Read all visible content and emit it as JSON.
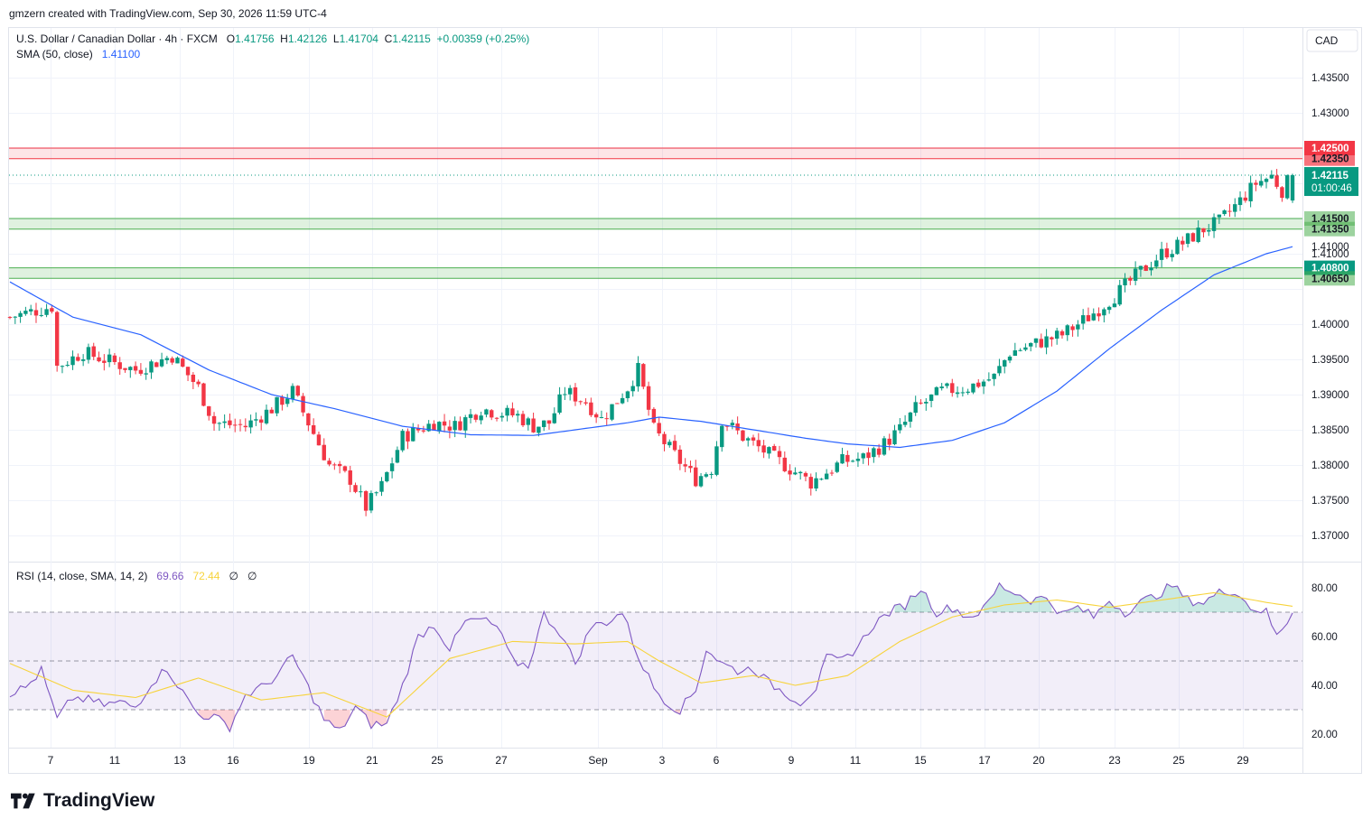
{
  "header": {
    "attribution": "gmzern created with TradingView.com, Sep 30, 2026 11:59 UTC-4"
  },
  "legend": {
    "symbol": "U.S. Dollar / Canadian Dollar · 4h · FXCM",
    "o_label": "O",
    "o": "1.41756",
    "h_label": "H",
    "h": "1.42126",
    "l_label": "L",
    "l": "1.41704",
    "c_label": "C",
    "c": "1.42115",
    "change": "+0.00359 (+0.25%)",
    "sma_label": "SMA (50, close)",
    "sma_value": "1.41100"
  },
  "rsi_legend": {
    "label": "RSI (14, close, SMA, 14, 2)",
    "rsi_value": "69.66",
    "rsi_sma_value": "72.44",
    "extra1": "∅",
    "extra2": "∅"
  },
  "axis": {
    "currency": "CAD",
    "countdown": "01:00:46"
  },
  "brand": {
    "name": "TradingView"
  },
  "colors": {
    "up": "#089981",
    "down": "#f23645",
    "sma": "#2962ff",
    "rsi": "#7e57c2",
    "rsi_sma": "#f7d33b",
    "resistance_zone": "#f23645",
    "support_zone": "#4caf50"
  },
  "chart_data": [
    {
      "type": "candlestick",
      "title": "U.S. Dollar / Canadian Dollar · 4h · FXCM",
      "ylim": [
        1.3665,
        1.4385
      ],
      "yticks": [
        "1.43500",
        "1.43000",
        "1.41000",
        "1.40000",
        "1.39500",
        "1.39000",
        "1.38500",
        "1.38000",
        "1.37500",
        "1.37000"
      ],
      "xticks": [
        "7",
        "11",
        "13",
        "16",
        "19",
        "21",
        "25",
        "27",
        "Sep",
        "3",
        "6",
        "9",
        "11",
        "15",
        "17",
        "20",
        "23",
        "25",
        "29"
      ],
      "price_anchors": [
        [
          0,
          1.401
        ],
        [
          8,
          1.4025
        ],
        [
          9,
          1.394
        ],
        [
          14,
          1.396
        ],
        [
          24,
          1.3935
        ],
        [
          31,
          1.3955
        ],
        [
          36,
          1.391
        ],
        [
          39,
          1.386
        ],
        [
          45,
          1.3855
        ],
        [
          50,
          1.388
        ],
        [
          54,
          1.3905
        ],
        [
          57,
          1.386
        ],
        [
          61,
          1.38
        ],
        [
          65,
          1.378
        ],
        [
          68,
          1.374
        ],
        [
          71,
          1.377
        ],
        [
          75,
          1.384
        ],
        [
          81,
          1.386
        ],
        [
          85,
          1.3855
        ],
        [
          90,
          1.388
        ],
        [
          93,
          1.3875
        ],
        [
          97,
          1.387
        ],
        [
          100,
          1.3855
        ],
        [
          103,
          1.386
        ],
        [
          106,
          1.3905
        ],
        [
          110,
          1.389
        ],
        [
          113,
          1.3865
        ],
        [
          118,
          1.391
        ],
        [
          120,
          1.3935
        ],
        [
          123,
          1.385
        ],
        [
          128,
          1.3805
        ],
        [
          131,
          1.378
        ],
        [
          134,
          1.3795
        ],
        [
          136,
          1.3865
        ],
        [
          140,
          1.384
        ],
        [
          145,
          1.3815
        ],
        [
          150,
          1.379
        ],
        [
          153,
          1.3775
        ],
        [
          156,
          1.379
        ],
        [
          159,
          1.3805
        ],
        [
          163,
          1.381
        ],
        [
          167,
          1.383
        ],
        [
          170,
          1.385
        ],
        [
          173,
          1.388
        ],
        [
          178,
          1.3905
        ],
        [
          183,
          1.391
        ],
        [
          188,
          1.3925
        ],
        [
          191,
          1.396
        ],
        [
          197,
          1.3975
        ],
        [
          201,
          1.3985
        ],
        [
          206,
          1.401
        ],
        [
          211,
          1.404
        ],
        [
          216,
          1.4075
        ],
        [
          220,
          1.41
        ],
        [
          224,
          1.4115
        ],
        [
          228,
          1.4135
        ],
        [
          231,
          1.4145
        ],
        [
          235,
          1.4175
        ],
        [
          238,
          1.42
        ],
        [
          241,
          1.421
        ],
        [
          243,
          1.419
        ],
        [
          245,
          1.4212
        ]
      ],
      "sma50": [
        [
          0,
          1.406
        ],
        [
          12,
          1.401
        ],
        [
          25,
          1.3985
        ],
        [
          38,
          1.3935
        ],
        [
          50,
          1.39
        ],
        [
          62,
          1.388
        ],
        [
          75,
          1.3855
        ],
        [
          88,
          1.3843
        ],
        [
          100,
          1.3842
        ],
        [
          108,
          1.385
        ],
        [
          118,
          1.386
        ],
        [
          124,
          1.3868
        ],
        [
          132,
          1.3862
        ],
        [
          142,
          1.385
        ],
        [
          152,
          1.3838
        ],
        [
          160,
          1.383
        ],
        [
          170,
          1.3825
        ],
        [
          180,
          1.3835
        ],
        [
          190,
          1.386
        ],
        [
          200,
          1.3905
        ],
        [
          210,
          1.3965
        ],
        [
          220,
          1.402
        ],
        [
          230,
          1.407
        ],
        [
          240,
          1.41
        ],
        [
          245,
          1.411
        ]
      ],
      "zones": [
        {
          "from": 1.4235,
          "to": 1.425,
          "kind": "resistance"
        },
        {
          "from": 1.4135,
          "to": 1.415,
          "kind": "support"
        },
        {
          "from": 1.4065,
          "to": 1.408,
          "kind": "support"
        }
      ],
      "last_price": 1.42115
    },
    {
      "type": "line",
      "title": "RSI (14, close, SMA, 14, 2)",
      "ylim": [
        15,
        85
      ],
      "yticks": [
        "80.00",
        "60.00",
        "40.00",
        "20.00"
      ],
      "bands": [
        70,
        50,
        30
      ],
      "rsi": [
        [
          0,
          37
        ],
        [
          3,
          39
        ],
        [
          6,
          46
        ],
        [
          9,
          26
        ],
        [
          12,
          35
        ],
        [
          15,
          34
        ],
        [
          18,
          32
        ],
        [
          21,
          33
        ],
        [
          24,
          31
        ],
        [
          27,
          41
        ],
        [
          30,
          47
        ],
        [
          33,
          37
        ],
        [
          36,
          28
        ],
        [
          39,
          27
        ],
        [
          42,
          23
        ],
        [
          45,
          36
        ],
        [
          48,
          39
        ],
        [
          51,
          44
        ],
        [
          54,
          52
        ],
        [
          57,
          39
        ],
        [
          60,
          26
        ],
        [
          63,
          21
        ],
        [
          66,
          31
        ],
        [
          69,
          24
        ],
        [
          72,
          24
        ],
        [
          75,
          40
        ],
        [
          78,
          60
        ],
        [
          81,
          65
        ],
        [
          84,
          55
        ],
        [
          87,
          66
        ],
        [
          90,
          67
        ],
        [
          93,
          64
        ],
        [
          96,
          50
        ],
        [
          99,
          48
        ],
        [
          102,
          69
        ],
        [
          105,
          62
        ],
        [
          108,
          49
        ],
        [
          111,
          64
        ],
        [
          114,
          66
        ],
        [
          117,
          70
        ],
        [
          120,
          52
        ],
        [
          123,
          39
        ],
        [
          126,
          32
        ],
        [
          128,
          30
        ],
        [
          131,
          38
        ],
        [
          133,
          55
        ],
        [
          136,
          49
        ],
        [
          139,
          46
        ],
        [
          142,
          47
        ],
        [
          145,
          41
        ],
        [
          148,
          37
        ],
        [
          151,
          33
        ],
        [
          154,
          39
        ],
        [
          156,
          51
        ],
        [
          159,
          50
        ],
        [
          162,
          56
        ],
        [
          165,
          65
        ],
        [
          168,
          70
        ],
        [
          171,
          73
        ],
        [
          174,
          80
        ],
        [
          177,
          70
        ],
        [
          180,
          72
        ],
        [
          183,
          68
        ],
        [
          186,
          71
        ],
        [
          189,
          81
        ],
        [
          192,
          78
        ],
        [
          195,
          75
        ],
        [
          198,
          76
        ],
        [
          201,
          69
        ],
        [
          204,
          72
        ],
        [
          207,
          68
        ],
        [
          210,
          75
        ],
        [
          213,
          70
        ],
        [
          216,
          74
        ],
        [
          219,
          77
        ],
        [
          222,
          81
        ],
        [
          225,
          75
        ],
        [
          228,
          74
        ],
        [
          231,
          78
        ],
        [
          234,
          79
        ],
        [
          237,
          72
        ],
        [
          240,
          70
        ],
        [
          242,
          60
        ],
        [
          245,
          69.66
        ]
      ],
      "rsi_sma": [
        [
          0,
          49
        ],
        [
          12,
          38
        ],
        [
          24,
          35
        ],
        [
          36,
          43
        ],
        [
          48,
          34
        ],
        [
          60,
          37
        ],
        [
          72,
          27
        ],
        [
          84,
          51
        ],
        [
          96,
          58
        ],
        [
          108,
          57
        ],
        [
          118,
          58
        ],
        [
          124,
          50
        ],
        [
          132,
          41
        ],
        [
          142,
          44
        ],
        [
          150,
          40
        ],
        [
          160,
          44
        ],
        [
          170,
          58
        ],
        [
          180,
          68
        ],
        [
          190,
          73
        ],
        [
          200,
          75
        ],
        [
          210,
          72
        ],
        [
          220,
          75
        ],
        [
          230,
          78
        ],
        [
          240,
          74
        ],
        [
          245,
          72.44
        ]
      ]
    }
  ]
}
